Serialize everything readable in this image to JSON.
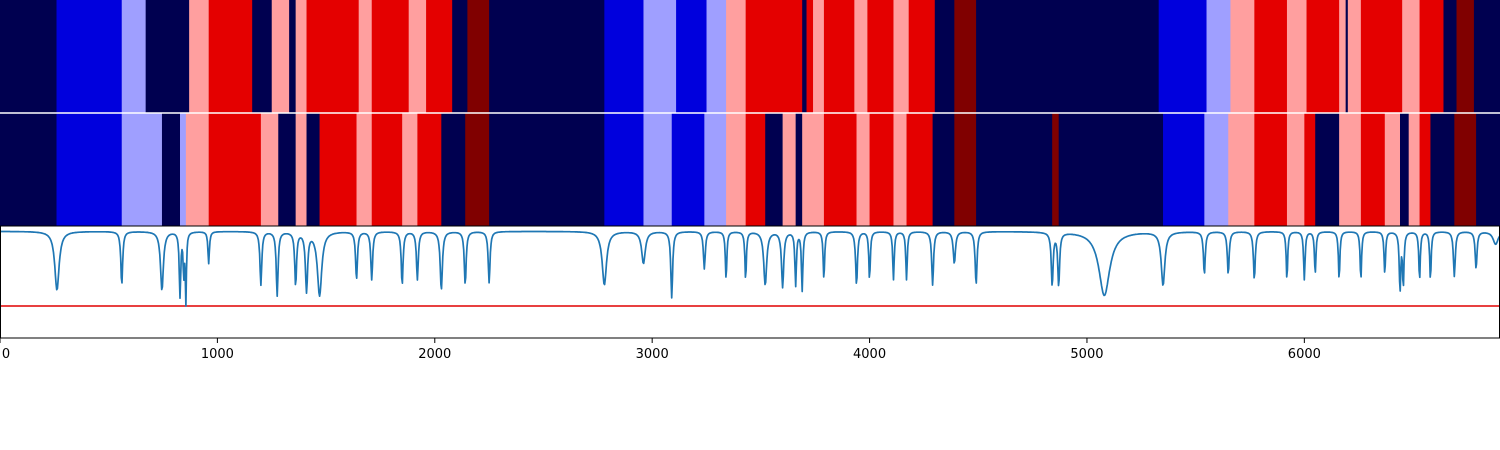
{
  "colors": {
    "navy": "#000050",
    "blue": "#0000dd",
    "lightblue": "#9f9fff",
    "pink": "#ff9f9f",
    "red": "#e40000",
    "darkred": "#800000",
    "line": "#1f77b4",
    "threshold": "#e00000",
    "axis": "#000000"
  },
  "chart_data": {
    "type": "heatmap",
    "xlim": [
      0,
      6900
    ],
    "x_ticks": [
      0,
      1000,
      2000,
      3000,
      4000,
      5000,
      6000
    ],
    "x_tick_labels": [
      "0",
      "1000",
      "2000",
      "3000",
      "4000",
      "5000",
      "6000"
    ],
    "rows": [
      {
        "segments": [
          [
            0,
            260,
            "navy"
          ],
          [
            260,
            560,
            "blue"
          ],
          [
            560,
            670,
            "lightblue"
          ],
          [
            670,
            870,
            "navy"
          ],
          [
            870,
            960,
            "pink"
          ],
          [
            960,
            1160,
            "red"
          ],
          [
            1160,
            1250,
            "navy"
          ],
          [
            1250,
            1330,
            "pink"
          ],
          [
            1330,
            1360,
            "navy"
          ],
          [
            1360,
            1410,
            "pink"
          ],
          [
            1410,
            1650,
            "red"
          ],
          [
            1650,
            1710,
            "pink"
          ],
          [
            1710,
            1880,
            "red"
          ],
          [
            1880,
            1960,
            "pink"
          ],
          [
            1960,
            2080,
            "red"
          ],
          [
            2080,
            2150,
            "navy"
          ],
          [
            2150,
            2250,
            "darkred"
          ],
          [
            2250,
            2780,
            "navy"
          ],
          [
            2780,
            2960,
            "blue"
          ],
          [
            2960,
            3110,
            "lightblue"
          ],
          [
            3110,
            3250,
            "blue"
          ],
          [
            3250,
            3340,
            "lightblue"
          ],
          [
            3340,
            3430,
            "pink"
          ],
          [
            3430,
            3690,
            "red"
          ],
          [
            3690,
            3710,
            "navy"
          ],
          [
            3710,
            3740,
            "red"
          ],
          [
            3740,
            3790,
            "pink"
          ],
          [
            3790,
            3930,
            "red"
          ],
          [
            3930,
            3990,
            "pink"
          ],
          [
            3990,
            4110,
            "red"
          ],
          [
            4110,
            4180,
            "pink"
          ],
          [
            4180,
            4300,
            "red"
          ],
          [
            4300,
            4390,
            "navy"
          ],
          [
            4390,
            4490,
            "darkred"
          ],
          [
            4490,
            5330,
            "navy"
          ],
          [
            5330,
            5550,
            "blue"
          ],
          [
            5550,
            5660,
            "lightblue"
          ],
          [
            5660,
            5770,
            "pink"
          ],
          [
            5770,
            5920,
            "red"
          ],
          [
            5920,
            6010,
            "pink"
          ],
          [
            6010,
            6160,
            "red"
          ],
          [
            6160,
            6190,
            "pink"
          ],
          [
            6190,
            6200,
            "navy"
          ],
          [
            6200,
            6260,
            "pink"
          ],
          [
            6260,
            6450,
            "red"
          ],
          [
            6450,
            6530,
            "pink"
          ],
          [
            6530,
            6640,
            "red"
          ],
          [
            6640,
            6700,
            "navy"
          ],
          [
            6700,
            6780,
            "darkred"
          ],
          [
            6780,
            6900,
            "navy"
          ]
        ]
      },
      {
        "segments": [
          [
            0,
            260,
            "navy"
          ],
          [
            260,
            560,
            "blue"
          ],
          [
            560,
            745,
            "lightblue"
          ],
          [
            745,
            828,
            "navy"
          ],
          [
            828,
            855,
            "lightblue"
          ],
          [
            855,
            960,
            "pink"
          ],
          [
            960,
            1200,
            "red"
          ],
          [
            1200,
            1280,
            "pink"
          ],
          [
            1280,
            1360,
            "navy"
          ],
          [
            1360,
            1410,
            "pink"
          ],
          [
            1410,
            1470,
            "navy"
          ],
          [
            1470,
            1640,
            "red"
          ],
          [
            1640,
            1710,
            "pink"
          ],
          [
            1710,
            1850,
            "red"
          ],
          [
            1850,
            1920,
            "pink"
          ],
          [
            1920,
            2030,
            "red"
          ],
          [
            2030,
            2140,
            "navy"
          ],
          [
            2140,
            2250,
            "darkred"
          ],
          [
            2250,
            2780,
            "navy"
          ],
          [
            2780,
            2960,
            "blue"
          ],
          [
            2960,
            3090,
            "lightblue"
          ],
          [
            3090,
            3240,
            "blue"
          ],
          [
            3240,
            3340,
            "lightblue"
          ],
          [
            3340,
            3430,
            "pink"
          ],
          [
            3430,
            3520,
            "red"
          ],
          [
            3520,
            3600,
            "navy"
          ],
          [
            3600,
            3660,
            "pink"
          ],
          [
            3660,
            3690,
            "navy"
          ],
          [
            3690,
            3790,
            "pink"
          ],
          [
            3790,
            3940,
            "red"
          ],
          [
            3940,
            4000,
            "pink"
          ],
          [
            4000,
            4110,
            "red"
          ],
          [
            4110,
            4170,
            "pink"
          ],
          [
            4170,
            4290,
            "red"
          ],
          [
            4290,
            4390,
            "navy"
          ],
          [
            4390,
            4490,
            "darkred"
          ],
          [
            4490,
            4840,
            "navy"
          ],
          [
            4840,
            4870,
            "darkred"
          ],
          [
            4870,
            5350,
            "navy"
          ],
          [
            5350,
            5540,
            "blue"
          ],
          [
            5540,
            5650,
            "lightblue"
          ],
          [
            5650,
            5770,
            "pink"
          ],
          [
            5770,
            5920,
            "red"
          ],
          [
            5920,
            6000,
            "pink"
          ],
          [
            6000,
            6050,
            "red"
          ],
          [
            6050,
            6160,
            "navy"
          ],
          [
            6160,
            6260,
            "pink"
          ],
          [
            6260,
            6370,
            "red"
          ],
          [
            6370,
            6440,
            "pink"
          ],
          [
            6440,
            6480,
            "navy"
          ],
          [
            6480,
            6530,
            "pink"
          ],
          [
            6530,
            6580,
            "red"
          ],
          [
            6580,
            6690,
            "navy"
          ],
          [
            6690,
            6790,
            "darkred"
          ],
          [
            6790,
            6900,
            "navy"
          ]
        ]
      }
    ],
    "signal": {
      "ylim": [
        -1.0,
        0.05
      ],
      "threshold": -0.7,
      "baseline": 0,
      "dips": [
        [
          262,
          0.55,
          12
        ],
        [
          560,
          0.5,
          5
        ],
        [
          745,
          0.55,
          8
        ],
        [
          828,
          0.6,
          4
        ],
        [
          845,
          0.4,
          3
        ],
        [
          855,
          0.65,
          3
        ],
        [
          960,
          0.3,
          4
        ],
        [
          1200,
          0.5,
          5
        ],
        [
          1275,
          0.6,
          5
        ],
        [
          1360,
          0.5,
          5
        ],
        [
          1410,
          0.55,
          6
        ],
        [
          1470,
          0.6,
          12
        ],
        [
          1640,
          0.45,
          5
        ],
        [
          1710,
          0.45,
          5
        ],
        [
          1850,
          0.5,
          5
        ],
        [
          1920,
          0.45,
          5
        ],
        [
          2030,
          0.55,
          6
        ],
        [
          2140,
          0.5,
          5
        ],
        [
          2250,
          0.48,
          5
        ],
        [
          2780,
          0.5,
          12
        ],
        [
          2960,
          0.3,
          10
        ],
        [
          3090,
          0.62,
          5
        ],
        [
          3240,
          0.35,
          5
        ],
        [
          3340,
          0.45,
          4
        ],
        [
          3430,
          0.45,
          4
        ],
        [
          3520,
          0.5,
          8
        ],
        [
          3600,
          0.52,
          6
        ],
        [
          3660,
          0.5,
          4
        ],
        [
          3690,
          0.55,
          4
        ],
        [
          3790,
          0.45,
          4
        ],
        [
          3940,
          0.5,
          5
        ],
        [
          4000,
          0.45,
          4
        ],
        [
          4110,
          0.45,
          4
        ],
        [
          4170,
          0.45,
          4
        ],
        [
          4290,
          0.5,
          5
        ],
        [
          4390,
          0.3,
          6
        ],
        [
          4490,
          0.5,
          5
        ],
        [
          4840,
          0.5,
          5
        ],
        [
          4870,
          0.5,
          5
        ],
        [
          5080,
          0.6,
          30
        ],
        [
          5350,
          0.5,
          10
        ],
        [
          5540,
          0.4,
          5
        ],
        [
          5650,
          0.4,
          5
        ],
        [
          5770,
          0.45,
          5
        ],
        [
          5920,
          0.45,
          4
        ],
        [
          6000,
          0.45,
          4
        ],
        [
          6050,
          0.4,
          4
        ],
        [
          6160,
          0.45,
          4
        ],
        [
          6260,
          0.45,
          4
        ],
        [
          6370,
          0.4,
          4
        ],
        [
          6440,
          0.55,
          4
        ],
        [
          6455,
          0.5,
          4
        ],
        [
          6530,
          0.45,
          4
        ],
        [
          6580,
          0.45,
          4
        ],
        [
          6690,
          0.42,
          5
        ],
        [
          6790,
          0.35,
          5
        ],
        [
          6880,
          0.12,
          14
        ]
      ]
    }
  }
}
